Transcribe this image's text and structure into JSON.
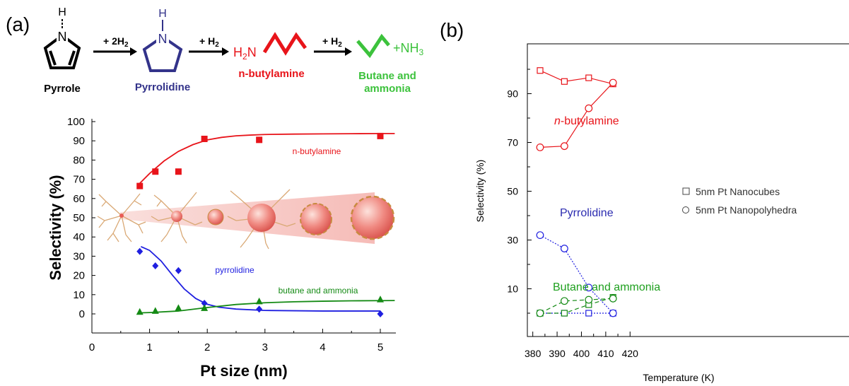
{
  "panel_labels": {
    "a": "(a)",
    "b": "(b)"
  },
  "scheme": {
    "pyrrole": "Pyrrole",
    "pyrrolidine": "Pyrrolidine",
    "n_butylamine": "n-butylamine",
    "butane_ammonia_line1": "Butane and",
    "butane_ammonia_line2": "ammonia",
    "arrow1": "+ 2H",
    "arrow1_sub": "2",
    "arrow2": "+ H",
    "arrow2_sub": "2",
    "arrow3": "+ H",
    "arrow3_sub": "2",
    "h_atom": "H",
    "n_atom": "N",
    "h2n_h": "H",
    "h2n_sub": "2",
    "h2n_n": "N",
    "nh3_prefix": "+NH",
    "nh3_sub": "3"
  },
  "colors": {
    "red": "#e8141a",
    "blue": "#1f1fe0",
    "green": "#148a14",
    "dark_blue": "#33338a",
    "bright_green": "#3cc23c",
    "label_blue": "#2b2bb0",
    "label_green": "#1fa01f"
  },
  "chart_data": [
    {
      "type": "scatter",
      "xlabel": "Pt size (nm)",
      "ylabel": "Selectivity (%)",
      "xlim": [
        0,
        5.5
      ],
      "ylim": [
        -10,
        100
      ],
      "x_ticks": [
        "0",
        "1",
        "2",
        "3",
        "4",
        "5"
      ],
      "y_ticks": [
        "0",
        "10",
        "20",
        "30",
        "40",
        "50",
        "60",
        "70",
        "80",
        "90",
        "100"
      ],
      "series": [
        {
          "name": "n-butylamine",
          "marker": "square",
          "color": "#e8141a",
          "x": [
            0.83,
            1.1,
            1.5,
            1.95,
            2.9,
            5.0
          ],
          "y": [
            66.5,
            74,
            74,
            91,
            90.5,
            92.5
          ],
          "fit_x": [
            0.8,
            1.0,
            1.25,
            1.5,
            1.75,
            2.0,
            2.25,
            2.5,
            2.75,
            3.0,
            3.5,
            4.0,
            4.5,
            5.0,
            5.25
          ],
          "fit_y": [
            67,
            73,
            79.5,
            84.5,
            88,
            90.5,
            91.8,
            92.6,
            93.0,
            93.3,
            93.5,
            93.6,
            93.7,
            93.8,
            93.8
          ]
        },
        {
          "name": "pyrrolidine",
          "marker": "diamond",
          "color": "#1f1fe0",
          "x": [
            0.83,
            1.1,
            1.5,
            1.95,
            2.9,
            5.0
          ],
          "y": [
            32.5,
            25,
            22.5,
            5.5,
            2.5,
            0
          ],
          "fit_x": [
            0.85,
            1.0,
            1.2,
            1.4,
            1.6,
            1.8,
            2.0,
            2.2,
            2.5,
            3.0,
            4.0,
            5.0
          ],
          "fit_y": [
            35,
            33,
            27.5,
            20,
            13,
            8,
            5,
            3.5,
            2.5,
            1.8,
            1.5,
            1.5
          ]
        },
        {
          "name": "butane and ammonia",
          "marker": "triangle",
          "color": "#148a14",
          "x": [
            0.83,
            1.1,
            1.5,
            1.95,
            2.9,
            5.0
          ],
          "y": [
            1,
            1.5,
            3,
            3,
            6.5,
            7.5
          ],
          "fit_x": [
            0.8,
            1.0,
            1.5,
            2.0,
            2.5,
            3.0,
            3.5,
            4.0,
            4.5,
            5.0,
            5.25
          ],
          "fit_y": [
            0.5,
            0.7,
            1.5,
            3.3,
            4.9,
            5.8,
            6.3,
            6.6,
            6.8,
            6.9,
            6.95
          ]
        }
      ],
      "annotations": [
        "n-butylamine",
        "pyrrolidine",
        "butane and ammonia"
      ]
    },
    {
      "type": "line",
      "xlabel": "Temperature (K)",
      "ylabel": "Selectivity (%)",
      "xlim": [
        377,
        422
      ],
      "ylim": [
        -10,
        110
      ],
      "x_ticks": [
        "380",
        "390",
        "400",
        "410",
        "420"
      ],
      "y_ticks": [
        "10",
        "30",
        "50",
        "70",
        "90"
      ],
      "legend": [
        "5nm Pt Nanocubes",
        "5nm Pt Nanopolyhedra"
      ],
      "labels": {
        "n_prefix": "n",
        "n_rest": "-butylamine",
        "pyrrolidine": "Pyrrolidine",
        "butane": "Butane and ammonia"
      },
      "series": [
        {
          "name": "n-butylamine nanocubes",
          "marker": "square",
          "color": "#e8141a",
          "dash": "solid",
          "x": [
            383,
            393,
            403,
            413
          ],
          "y": [
            99.5,
            95,
            96.5,
            94
          ]
        },
        {
          "name": "n-butylamine nanopolyhedra",
          "marker": "circle",
          "color": "#e8141a",
          "dash": "solid",
          "x": [
            383,
            393,
            403,
            413
          ],
          "y": [
            68,
            68.5,
            84,
            94.5
          ]
        },
        {
          "name": "pyrrolidine nanocubes",
          "marker": "square",
          "color": "#1f1fe0",
          "dash": "dotted",
          "x": [
            383,
            393,
            403,
            413
          ],
          "y": [
            0,
            0,
            0,
            0
          ]
        },
        {
          "name": "pyrrolidine nanopolyhedra",
          "marker": "circle",
          "color": "#1f1fe0",
          "dash": "dotted",
          "x": [
            383,
            393,
            403,
            413
          ],
          "y": [
            32,
            26.5,
            10.5,
            0
          ]
        },
        {
          "name": "butane nanocubes",
          "marker": "square",
          "color": "#148a14",
          "dash": "dashed",
          "x": [
            383,
            393,
            403,
            413
          ],
          "y": [
            0,
            0,
            3.5,
            6.5
          ]
        },
        {
          "name": "butane nanopolyhedra",
          "marker": "circle",
          "color": "#148a14",
          "dash": "dashed",
          "x": [
            383,
            393,
            403,
            413
          ],
          "y": [
            0,
            5,
            5.5,
            6
          ]
        }
      ]
    }
  ]
}
